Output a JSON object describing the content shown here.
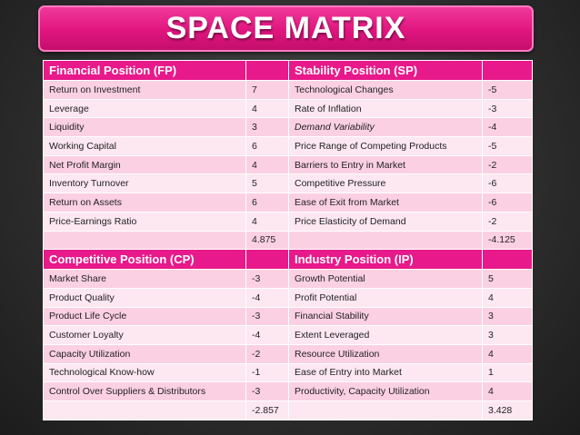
{
  "title": "SPACE MATRIX",
  "sections": [
    {
      "left_header": "Financial Position (FP)",
      "right_header": "Stability Position (SP)",
      "rows": [
        {
          "l": "Return on Investment",
          "lv": "7",
          "r": "Technological Changes",
          "rv": "-5"
        },
        {
          "l": "Leverage",
          "lv": "4",
          "r": "Rate of Inflation",
          "rv": "-3"
        },
        {
          "l": "Liquidity",
          "lv": "3",
          "r": "Demand Variability",
          "rv": "-4"
        },
        {
          "l": "Working Capital",
          "lv": "6",
          "r": "Price Range of Competing Products",
          "rv": "-5"
        },
        {
          "l": "Net Profit Margin",
          "lv": "4",
          "r": "Barriers to Entry in Market",
          "rv": "-2"
        },
        {
          "l": "Inventory Turnover",
          "lv": "5",
          "r": "Competitive Pressure",
          "rv": "-6"
        },
        {
          "l": "Return on Assets",
          "lv": "6",
          "r": "Ease of Exit from Market",
          "rv": "-6"
        },
        {
          "l": "Price-Earnings Ratio",
          "lv": "4",
          "r": "Price Elasticity of Demand",
          "rv": "-2"
        }
      ],
      "left_avg": "4.875",
      "right_avg": "-4.125"
    },
    {
      "left_header": "Competitive Position (CP)",
      "right_header": "Industry Position (IP)",
      "rows": [
        {
          "l": "Market Share",
          "lv": "-3",
          "r": "Growth Potential",
          "rv": "5"
        },
        {
          "l": "Product Quality",
          "lv": "-4",
          "r": "Profit Potential",
          "rv": "4"
        },
        {
          "l": "Product Life Cycle",
          "lv": "-3",
          "r": "Financial Stability",
          "rv": "3"
        },
        {
          "l": "Customer Loyalty",
          "lv": "-4",
          "r": "Extent Leveraged",
          "rv": "3"
        },
        {
          "l": "Capacity Utilization",
          "lv": "-2",
          "r": "Resource Utilization",
          "rv": "4"
        },
        {
          "l": "Technological Know-how",
          "lv": "-1",
          "r": "Ease of Entry into Market",
          "rv": "1"
        },
        {
          "l": "Control Over Suppliers & Distributors",
          "lv": "-3",
          "r": "Productivity, Capacity Utilization",
          "rv": "4"
        }
      ],
      "left_avg": "-2.857",
      "right_avg": "3.428"
    }
  ]
}
